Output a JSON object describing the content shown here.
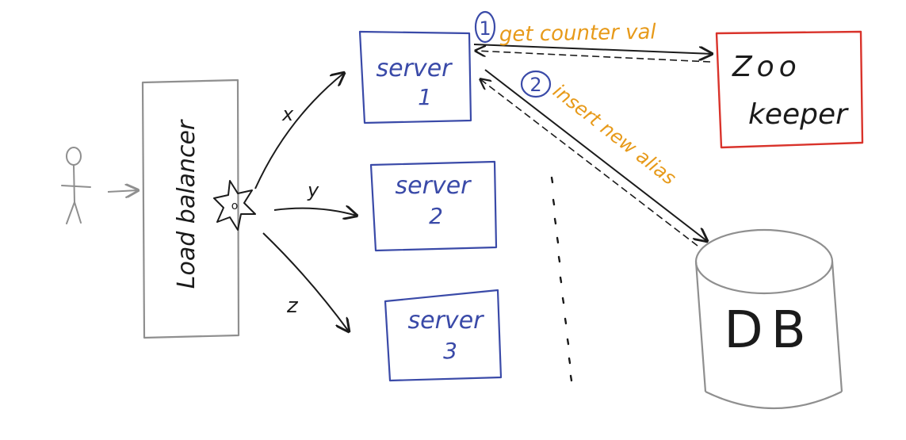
{
  "diagram": {
    "colors": {
      "gray": "#8f8f8f",
      "blue": "#3a4aa8",
      "red": "#d9332b",
      "orange": "#e79a1a",
      "black": "#1b1b1b"
    },
    "user": {
      "icon": "stick-figure-icon"
    },
    "load_balancer": {
      "label": "Load balancer",
      "hash_icon": "hash-function-icon"
    },
    "routes": {
      "x": "x",
      "y": "y",
      "z": "z"
    },
    "servers": [
      {
        "name": "server",
        "num": "1"
      },
      {
        "name": "server",
        "num": "2"
      },
      {
        "name": "server",
        "num": "3"
      }
    ],
    "zookeeper": {
      "line1": "Zoo",
      "line2": "keeper"
    },
    "db": {
      "label": "DB"
    },
    "steps": [
      {
        "num": "1",
        "text": "get counter val"
      },
      {
        "num": "2",
        "text": "insert new alias"
      }
    ]
  }
}
